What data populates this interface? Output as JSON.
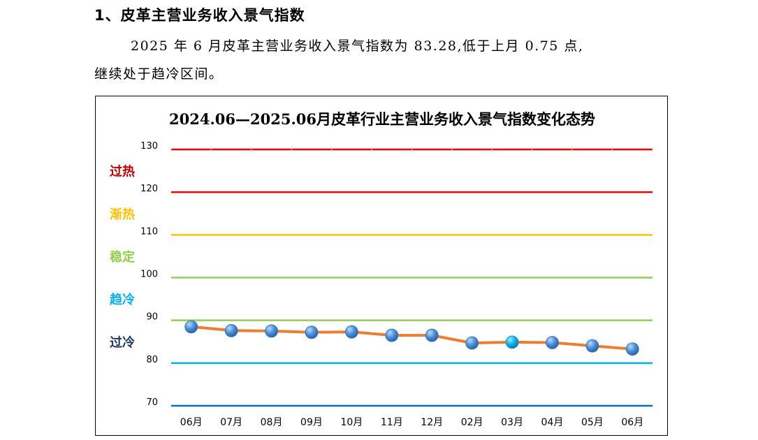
{
  "heading": "1、皮革主营业务收入景气指数",
  "paragraph": {
    "line1": "2025 年 6 月皮革主营业务收入景气指数为 83.28,低于上月 0.75 点,",
    "line2": "继续处于趋冷区间。"
  },
  "chart_data": {
    "type": "line",
    "title": "2024.06—2025.06月皮革行业主营业务收入景气指数变化态势",
    "categories": [
      "06月",
      "07月",
      "08月",
      "09月",
      "10月",
      "11月",
      "12月",
      "02月",
      "03月",
      "04月",
      "05月",
      "06月"
    ],
    "series": [
      {
        "values": [
          88.5,
          87.6,
          87.5,
          87.2,
          87.3,
          86.5,
          86.5,
          84.7,
          84.9,
          84.8,
          84.03,
          83.28
        ]
      }
    ],
    "ylim": [
      70,
      130
    ],
    "yticks": [
      130,
      120,
      110,
      100,
      90,
      80,
      70
    ],
    "zones": [
      {
        "label": "过热",
        "color": "#c00000"
      },
      {
        "label": "渐热",
        "color": "#ffc000"
      },
      {
        "label": "稳定",
        "color": "#92d050"
      },
      {
        "label": "趋冷",
        "color": "#00b0f0"
      },
      {
        "label": "过冷",
        "color": "#1f3864"
      }
    ],
    "threshold_lines": [
      {
        "value": 130,
        "color": "#ff0000"
      },
      {
        "value": 120,
        "color": "#ff0000"
      },
      {
        "value": 110,
        "color": "#ffc000"
      },
      {
        "value": 100,
        "color": "#92d050"
      },
      {
        "value": 90,
        "color": "#92d050"
      },
      {
        "value": 80,
        "color": "#00b0f0"
      },
      {
        "value": 70,
        "color": "#0070c0"
      }
    ],
    "line_color": "#ed7d31",
    "marker_color": "#4a8fd8",
    "highlight_marker_color": "#00b0f0"
  }
}
